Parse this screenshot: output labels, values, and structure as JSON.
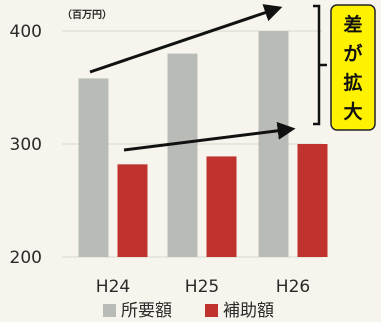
{
  "chart_data": {
    "type": "bar",
    "unit": "（百万円）",
    "categories": [
      "H24",
      "H25",
      "H26"
    ],
    "series": [
      {
        "name": "所要額",
        "values": [
          358,
          380,
          400
        ],
        "color": "#b9bbb7"
      },
      {
        "name": "補助額",
        "values": [
          282,
          289,
          300
        ],
        "color": "#c0322d"
      }
    ],
    "ylim": [
      200,
      400
    ],
    "yticks": [
      200,
      300,
      400
    ],
    "grid": true,
    "legend_placement": "bottom",
    "callout": {
      "text": [
        "差",
        "が",
        "拡",
        "大"
      ],
      "background": "#fff200"
    }
  }
}
